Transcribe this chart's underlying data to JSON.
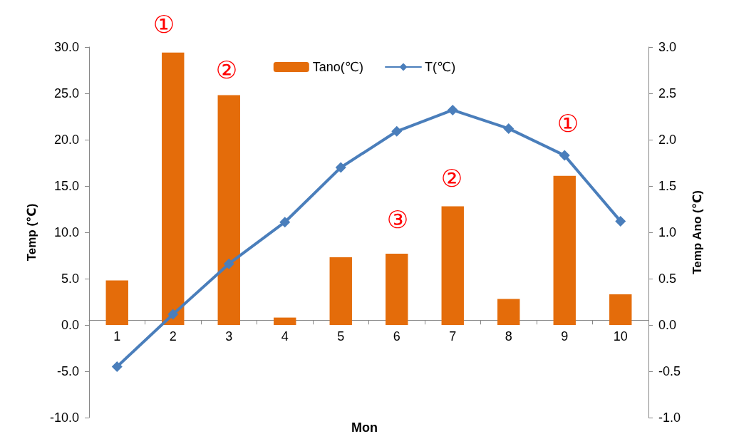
{
  "chart_data": {
    "type": "bar",
    "xlabel": "Mon",
    "ylabel": "Temp (℃)",
    "y2label": "Temp Ano (℃)",
    "categories": [
      "1",
      "2",
      "3",
      "4",
      "5",
      "6",
      "7",
      "8",
      "9",
      "10"
    ],
    "series": [
      {
        "name": "Tano(℃)",
        "axis": "y2",
        "color": "#e46c0a",
        "values": [
          0.48,
          2.94,
          2.48,
          0.08,
          0.73,
          0.77,
          1.28,
          0.28,
          1.61,
          0.33
        ]
      },
      {
        "name": "T(℃)",
        "type": "line",
        "color": "#4a7ebb",
        "marker": "diamond",
        "values": [
          -4.5,
          1.15,
          6.6,
          11.1,
          17.0,
          20.9,
          23.2,
          21.2,
          18.3,
          11.2
        ]
      }
    ],
    "ylim": [
      -10,
      30
    ],
    "yticks": [
      {
        "value": -10,
        "label": "-10.0"
      },
      {
        "value": -5,
        "label": "-5.0"
      },
      {
        "value": 0,
        "label": "0.0"
      },
      {
        "value": 5,
        "label": "5.0"
      },
      {
        "value": 10,
        "label": "10.0"
      },
      {
        "value": 15,
        "label": "15.0"
      },
      {
        "value": 20,
        "label": "20.0"
      },
      {
        "value": 25,
        "label": "25.0"
      },
      {
        "value": 30,
        "label": "30.0"
      }
    ],
    "y2lim": [
      -1,
      3
    ],
    "y2ticks": [
      {
        "value": -1,
        "label": "-1.0"
      },
      {
        "value": -0.5,
        "label": "-0.5"
      },
      {
        "value": 0,
        "label": "0.0"
      },
      {
        "value": 0.5,
        "label": "0.5"
      },
      {
        "value": 1,
        "label": "1.0"
      },
      {
        "value": 1.5,
        "label": "1.5"
      },
      {
        "value": 2,
        "label": "2.0"
      },
      {
        "value": 2.5,
        "label": "2.5"
      },
      {
        "value": 3,
        "label": "3.0"
      }
    ],
    "annotations": [
      "①",
      "②",
      "③",
      "②",
      "①"
    ],
    "legend": "top"
  }
}
